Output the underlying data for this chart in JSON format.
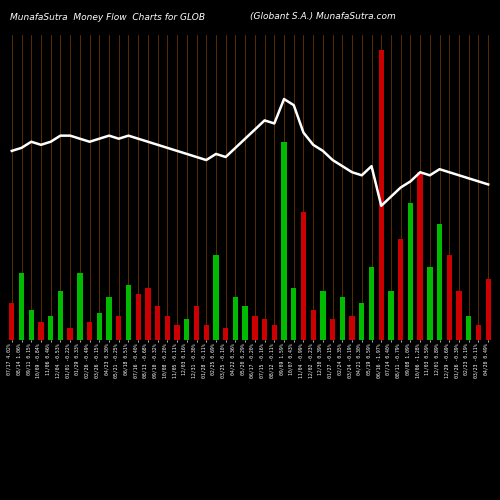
{
  "title_left": "MunafaSutra  Money Flow  Charts for GLOB",
  "title_right": "(Globant S.A.) MunafaSutra.com",
  "background_color": "#000000",
  "grid_color": "#8B4500",
  "bar_colors": [
    "red",
    "green",
    "green",
    "red",
    "green",
    "green",
    "red",
    "green",
    "red",
    "green",
    "green",
    "red",
    "green",
    "red",
    "red",
    "red",
    "red",
    "red",
    "green",
    "red",
    "red",
    "green",
    "red",
    "green",
    "green",
    "red",
    "red",
    "red",
    "green",
    "green",
    "red",
    "red",
    "green",
    "red",
    "green",
    "red",
    "green",
    "green",
    "red",
    "green",
    "red",
    "green",
    "red",
    "green",
    "green",
    "red",
    "red",
    "green",
    "red",
    "red"
  ],
  "bar_values": [
    12,
    22,
    10,
    6,
    8,
    16,
    4,
    22,
    6,
    9,
    14,
    8,
    18,
    15,
    17,
    11,
    8,
    5,
    7,
    11,
    5,
    28,
    4,
    14,
    11,
    8,
    7,
    5,
    65,
    17,
    42,
    10,
    16,
    7,
    14,
    8,
    12,
    24,
    95,
    16,
    33,
    45,
    55,
    24,
    38,
    28,
    16,
    8,
    5,
    20
  ],
  "line_values": [
    62,
    63,
    65,
    64,
    65,
    67,
    67,
    66,
    65,
    66,
    67,
    66,
    67,
    66,
    65,
    64,
    63,
    62,
    61,
    60,
    59,
    61,
    60,
    63,
    66,
    69,
    72,
    71,
    79,
    77,
    68,
    64,
    62,
    59,
    57,
    55,
    54,
    57,
    44,
    47,
    50,
    52,
    55,
    54,
    56,
    55,
    54,
    53,
    52,
    51
  ],
  "labels": [
    "07/17 4.02%",
    "08/14 1.06%",
    "09/11 0.15%",
    "10/09 -0.84%",
    "11/06 0.46%",
    "12/04 -0.53%",
    "01/01 -0.22%",
    "01/29 0.33%",
    "02/26 -0.49%",
    "03/26 -0.15%",
    "04/23 0.30%",
    "05/21 -0.25%",
    "06/18 0.51%",
    "07/16 -0.40%",
    "08/13 -0.68%",
    "09/10 -0.32%",
    "10/08 -0.20%",
    "11/05 -0.11%",
    "12/03 0.16%",
    "12/31 -0.30%",
    "01/28 -0.11%",
    "02/25 0.69%",
    "03/25 -0.10%",
    "04/22 0.36%",
    "05/20 0.29%",
    "06/17 -0.20%",
    "07/15 -0.16%",
    "08/12 -0.11%",
    "09/09 1.59%",
    "10/07 0.43%",
    "11/04 -0.99%",
    "12/02 -0.23%",
    "12/30 0.39%",
    "01/27 -0.15%",
    "02/24 0.35%",
    "03/24 -0.19%",
    "04/21 0.30%",
    "05/19 0.59%",
    "06/16 -1.97%",
    "07/14 0.40%",
    "08/11 -0.79%",
    "09/08 1.09%",
    "10/06 -1.28%",
    "11/03 0.59%",
    "12/01 0.89%",
    "12/29 -0.69%",
    "01/26 -0.39%",
    "02/23 0.19%",
    "03/23 -0.11%",
    "04/20 0.49%"
  ],
  "line_color": "#ffffff",
  "line_width": 1.8,
  "title_fontsize": 6.5,
  "label_fontsize": 3.5,
  "bar_green": "#00bb00",
  "bar_red": "#cc0000"
}
